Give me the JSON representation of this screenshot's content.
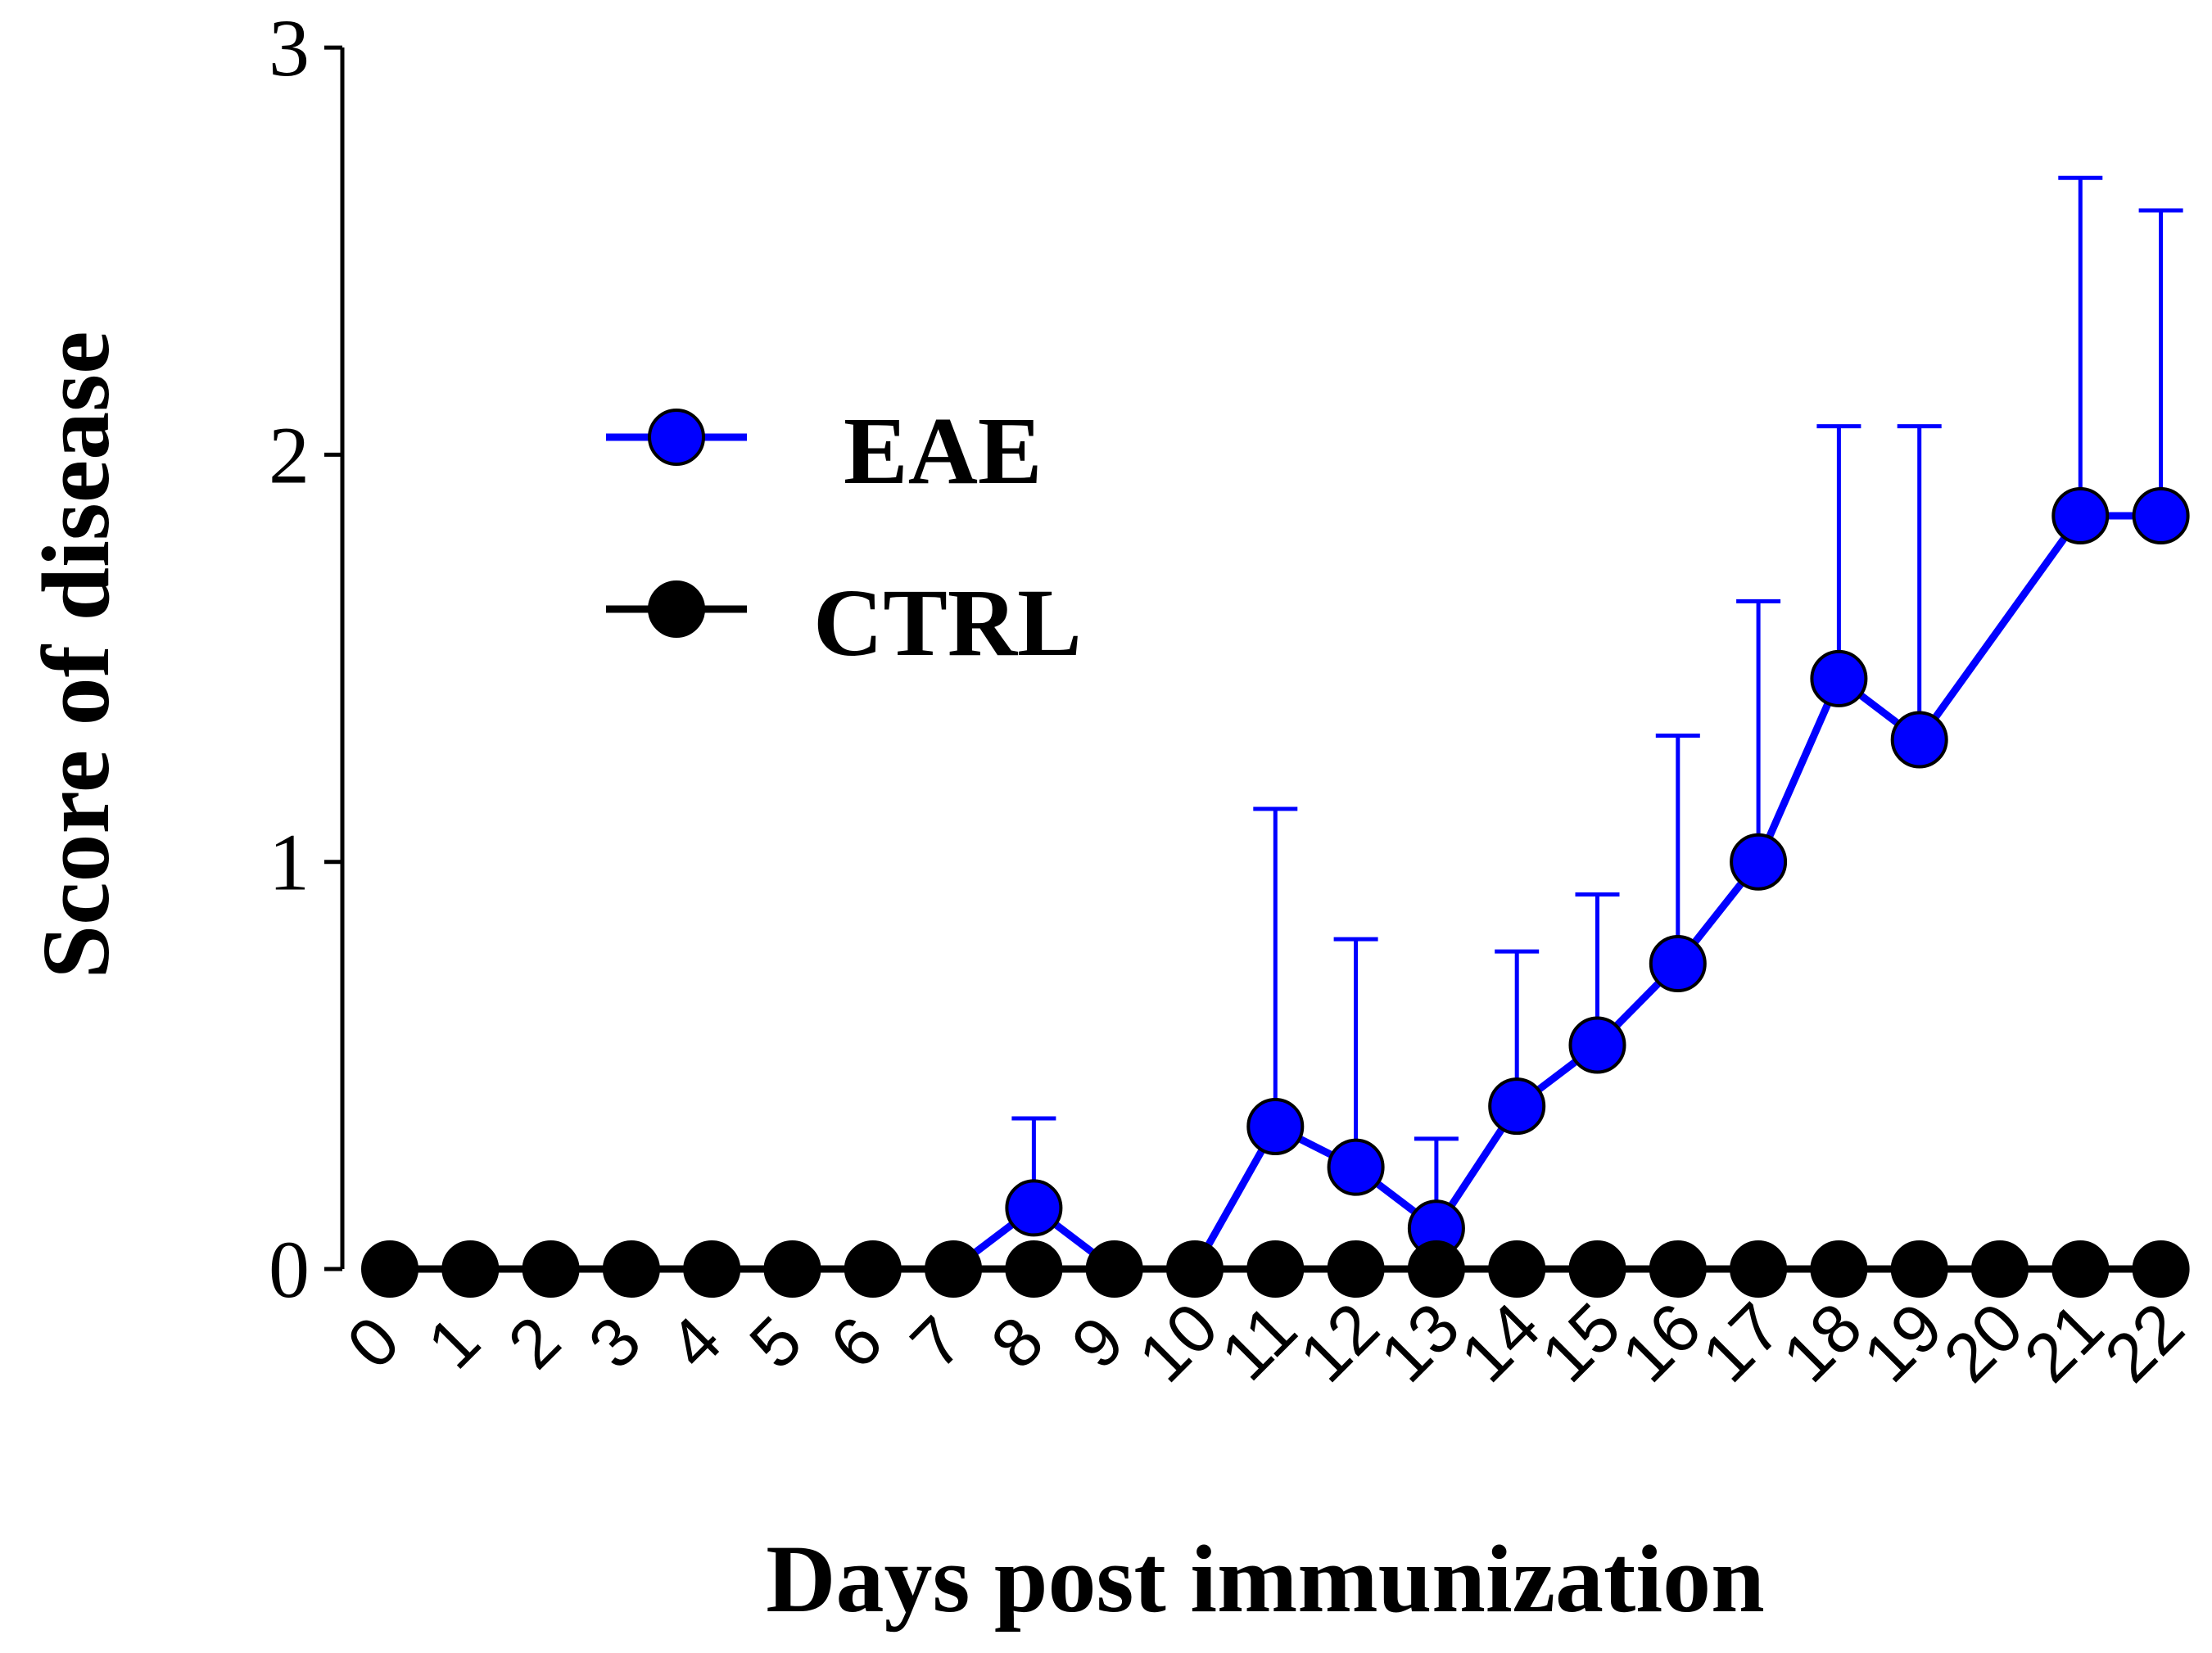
{
  "chart_data": {
    "type": "line",
    "title": "",
    "xlabel": "Days post immunization",
    "ylabel": "Score of disease",
    "x": [
      0,
      1,
      2,
      3,
      4,
      5,
      6,
      7,
      8,
      9,
      10,
      11,
      12,
      13,
      14,
      15,
      16,
      17,
      18,
      19,
      20,
      21,
      22
    ],
    "x_tick_labels": [
      "0",
      "1",
      "2",
      "3",
      "4",
      "5",
      "6",
      "7",
      "8",
      "9",
      "10",
      "11",
      "12",
      "13",
      "14",
      "15",
      "16",
      "17",
      "18",
      "19",
      "20",
      "21",
      "22"
    ],
    "ylim": [
      0,
      3
    ],
    "y_ticks": [
      0,
      1,
      2,
      3
    ],
    "y_tick_labels": [
      "0",
      "1",
      "2",
      "3"
    ],
    "grid": false,
    "legend_position": "top-left",
    "series": [
      {
        "name": "EAE",
        "color": "#0000ff",
        "x": [
          7,
          8,
          9,
          10,
          11,
          12,
          13,
          14,
          15,
          16,
          17,
          18,
          19,
          21,
          22
        ],
        "values": [
          0,
          0.15,
          0,
          0,
          0.35,
          0.25,
          0.1,
          0.4,
          0.55,
          0.75,
          1.0,
          1.45,
          1.3,
          1.85,
          1.85
        ],
        "error_upper": [
          null,
          0.37,
          null,
          null,
          1.13,
          0.81,
          0.32,
          0.78,
          0.92,
          1.31,
          1.64,
          2.07,
          2.07,
          2.68,
          2.6
        ],
        "markers": [
          false,
          true,
          false,
          false,
          true,
          true,
          true,
          true,
          true,
          true,
          true,
          true,
          true,
          true,
          true
        ]
      },
      {
        "name": "CTRL",
        "color": "#000000",
        "x": [
          0,
          1,
          2,
          3,
          4,
          5,
          6,
          7,
          8,
          9,
          10,
          11,
          12,
          13,
          14,
          15,
          16,
          17,
          18,
          19,
          20,
          21,
          22
        ],
        "values": [
          0,
          0,
          0,
          0,
          0,
          0,
          0,
          0,
          0,
          0,
          0,
          0,
          0,
          0,
          0,
          0,
          0,
          0,
          0,
          0,
          0,
          0,
          0
        ]
      }
    ]
  }
}
